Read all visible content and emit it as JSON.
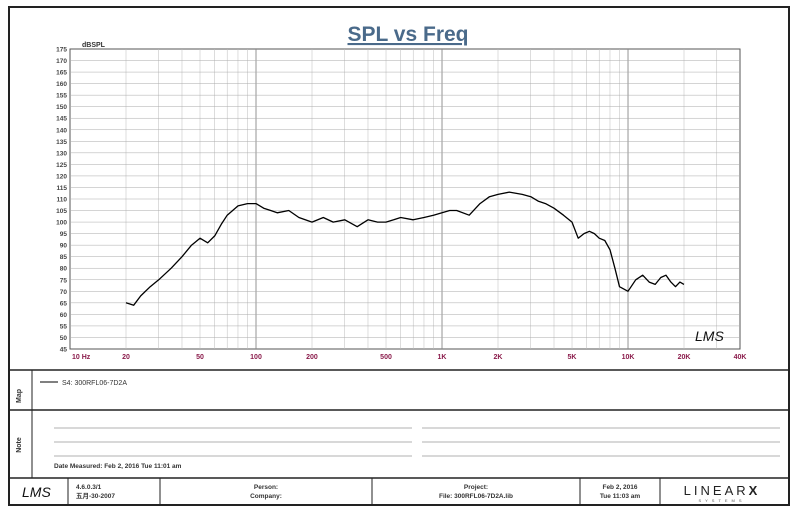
{
  "chart_data": {
    "type": "line",
    "title": "SPL vs Freq",
    "ylabel": "dBSPL",
    "xlabel": "",
    "x_scale": "log",
    "xlim": [
      10,
      40000
    ],
    "ylim": [
      45,
      175
    ],
    "y_ticks": [
      45,
      50,
      55,
      60,
      65,
      70,
      75,
      80,
      85,
      90,
      95,
      100,
      105,
      110,
      115,
      120,
      125,
      130,
      135,
      140,
      145,
      150,
      155,
      160,
      165,
      170,
      175
    ],
    "x_ticks": [
      {
        "value": 10,
        "label": "10 Hz"
      },
      {
        "value": 20,
        "label": "20"
      },
      {
        "value": 50,
        "label": "50"
      },
      {
        "value": 100,
        "label": "100"
      },
      {
        "value": 200,
        "label": "200"
      },
      {
        "value": 500,
        "label": "500"
      },
      {
        "value": 1000,
        "label": "1K"
      },
      {
        "value": 2000,
        "label": "2K"
      },
      {
        "value": 5000,
        "label": "5K"
      },
      {
        "value": 10000,
        "label": "10K"
      },
      {
        "value": 20000,
        "label": "20K"
      },
      {
        "value": 40000,
        "label": "40K"
      }
    ],
    "grid": true,
    "series": [
      {
        "name": "S4: 300RFL06-7D2A",
        "color": "#000000",
        "x": [
          20,
          22,
          24,
          27,
          30,
          35,
          40,
          45,
          50,
          55,
          60,
          65,
          70,
          80,
          90,
          100,
          110,
          120,
          130,
          150,
          170,
          200,
          230,
          260,
          300,
          350,
          400,
          450,
          500,
          550,
          600,
          700,
          800,
          900,
          1000,
          1100,
          1200,
          1400,
          1600,
          1800,
          2000,
          2300,
          2700,
          3000,
          3300,
          3600,
          4000,
          4500,
          5000,
          5400,
          5800,
          6200,
          6600,
          7000,
          7500,
          8000,
          8500,
          9000,
          10000,
          11000,
          12000,
          13000,
          14000,
          15000,
          16000,
          17000,
          18000,
          19000,
          20000
        ],
        "y": [
          65,
          64,
          68,
          72,
          75,
          80,
          85,
          90,
          93,
          91,
          94,
          99,
          103,
          107,
          108,
          108,
          106,
          105,
          104,
          105,
          102,
          100,
          102,
          100,
          101,
          98,
          101,
          100,
          100,
          101,
          102,
          101,
          102,
          103,
          104,
          105,
          105,
          103,
          108,
          111,
          112,
          113,
          112,
          111,
          109,
          108,
          106,
          103,
          100,
          93,
          95,
          96,
          95,
          93,
          92,
          88,
          80,
          72,
          70,
          75,
          77,
          74,
          73,
          76,
          77,
          74,
          72,
          74,
          73
        ]
      }
    ]
  },
  "legend": {
    "label": "Map",
    "entry": "S4: 300RFL06-7D2A"
  },
  "notes": {
    "label": "Note",
    "date_measured": "Date Measured: Feb 2, 2016  Tue 11:01 am"
  },
  "footer": {
    "logo": "LMS",
    "version": "4.6.0.3/1",
    "version_date": "五月-30-2007",
    "person_label": "Person:",
    "company_label": "Company:",
    "project_label": "Project:",
    "file_label": "File: 300RFL06-7D2A.lib",
    "date": "Feb 2, 2016",
    "time": "Tue 11:03 am",
    "brand": "LINEAR",
    "brand_x": "X",
    "brand_sub": "SYSTEMS"
  },
  "plot_logo": "LMS"
}
